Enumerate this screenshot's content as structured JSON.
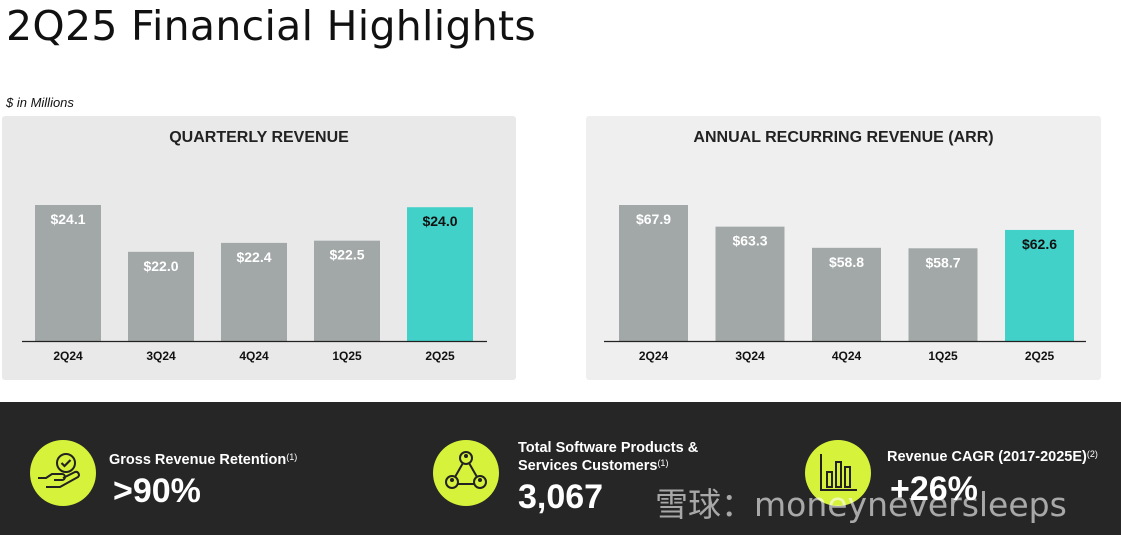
{
  "title": "2Q25 Financial Highlights",
  "units": "$ in Millions",
  "chart_data": [
    {
      "type": "bar",
      "title": "QUARTERLY REVENUE",
      "categories": [
        "2Q24",
        "3Q24",
        "4Q24",
        "1Q25",
        "2Q25"
      ],
      "values": [
        24.1,
        22.0,
        22.4,
        22.5,
        24.0
      ],
      "labels": [
        "$24.1",
        "$22.0",
        "$22.4",
        "$22.5",
        "$24.0"
      ],
      "highlight_index": 4,
      "ylim": [
        18.0,
        24.9
      ]
    },
    {
      "type": "bar",
      "title": "ANNUAL RECURRING REVENUE (ARR)",
      "categories": [
        "2Q24",
        "3Q24",
        "4Q24",
        "1Q25",
        "2Q25"
      ],
      "values": [
        67.9,
        63.3,
        58.8,
        58.7,
        62.6
      ],
      "labels": [
        "$67.9",
        "$63.3",
        "$58.8",
        "$58.7",
        "$62.6"
      ],
      "highlight_index": 4,
      "ylim": [
        39.0,
        70.0
      ]
    }
  ],
  "colors": {
    "bar": "#a2a8a7",
    "highlight": "#41d1c9",
    "accent": "#d6f23a",
    "dark": "#262626"
  },
  "stats": [
    {
      "label_lines": [
        "Gross Revenue Retention"
      ],
      "footnote": "(1)",
      "value": ">90%",
      "icon": "hand-checkmark-icon"
    },
    {
      "label_lines": [
        "Total Software Products &",
        "Services Customers"
      ],
      "footnote": "(1)",
      "value": "3,067",
      "icon": "customers-network-icon"
    },
    {
      "label_lines": [
        "Revenue CAGR (2017-2025E)"
      ],
      "footnote": "(2)",
      "value": "+26%",
      "icon": "bar-chart-icon"
    }
  ],
  "watermark": "雪球：moneyneversleeps"
}
